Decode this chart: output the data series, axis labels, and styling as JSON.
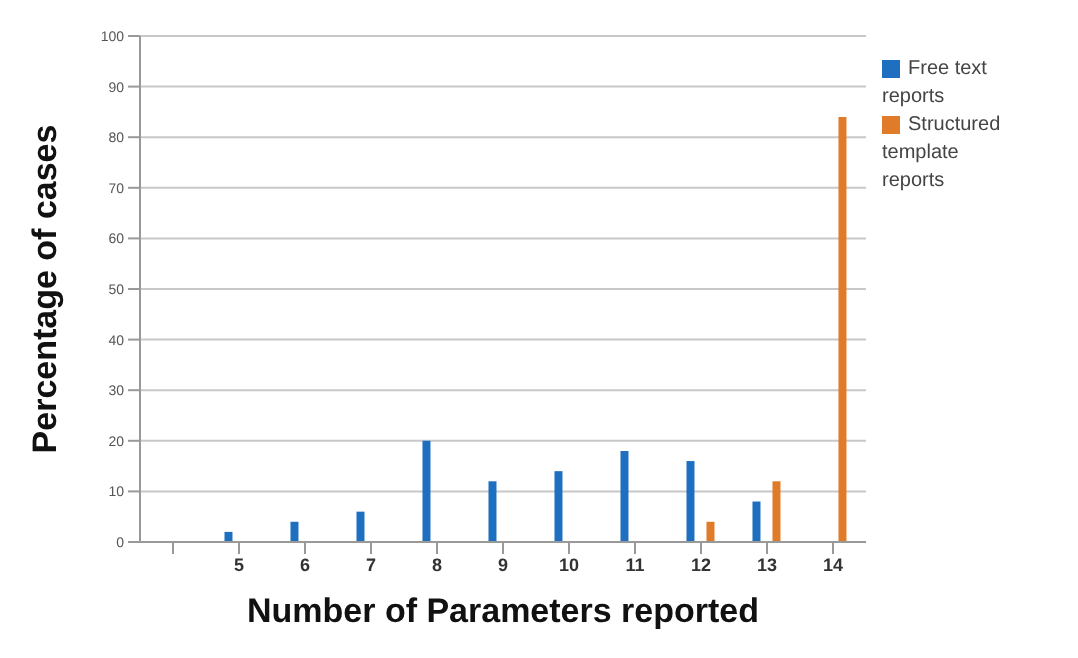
{
  "chart_data": {
    "type": "bar",
    "xlabel": "Number of Parameters reported",
    "ylabel": "Percentage of cases",
    "categories": [
      null,
      "5",
      "6",
      "7",
      "8",
      "9",
      "10",
      "11",
      "12",
      "13",
      "14"
    ],
    "series": [
      {
        "name": "Free text reports",
        "color": "#1f6fc0",
        "values": [
          null,
          2,
          4,
          6,
          20,
          12,
          14,
          18,
          16,
          8,
          null
        ]
      },
      {
        "name": "Structured template reports",
        "color": "#e07b2a",
        "values": [
          null,
          null,
          null,
          null,
          null,
          null,
          null,
          null,
          4,
          12,
          84
        ]
      }
    ],
    "ylim": [
      0,
      100
    ],
    "yticks": [
      0,
      10,
      20,
      30,
      40,
      50,
      60,
      70,
      80,
      90,
      100
    ],
    "grid": "y",
    "legend": "right"
  }
}
